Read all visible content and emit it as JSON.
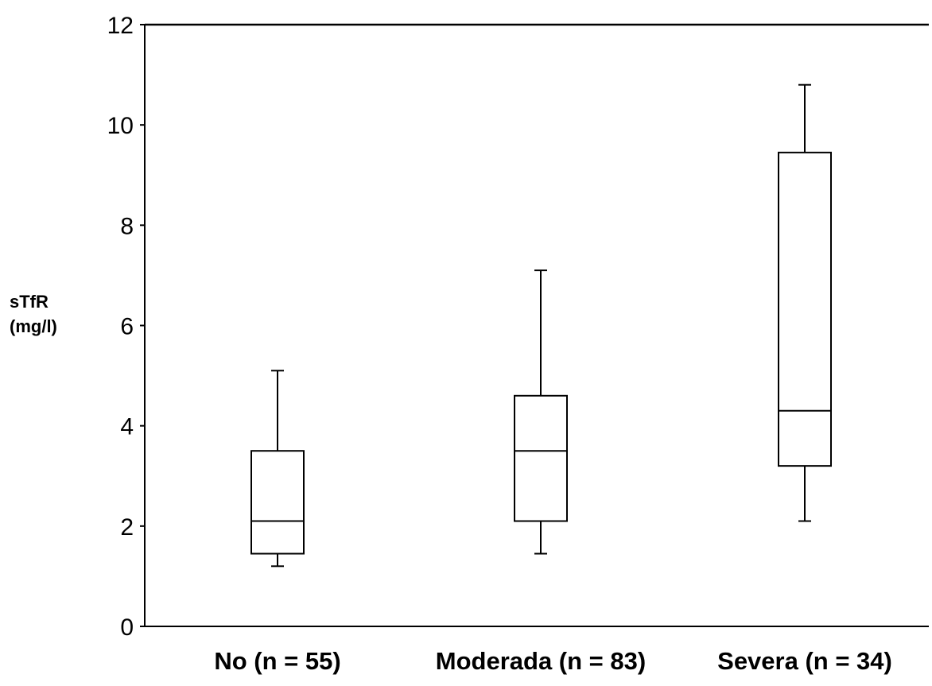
{
  "chart_data": {
    "type": "boxplot",
    "title": "",
    "xlabel": "",
    "ylabel": [
      "sTfR",
      "(mg/l)"
    ],
    "ylim": [
      0,
      12
    ],
    "yticks": [
      0,
      2,
      4,
      6,
      8,
      10,
      12
    ],
    "grid": false,
    "legend": "none",
    "categories": [
      "No (n = 55)",
      "Moderada (n = 83)",
      "Severa (n = 34)"
    ],
    "boxes": [
      {
        "category": "No (n = 55)",
        "whisker_low": 1.2,
        "q1": 1.45,
        "median": 2.1,
        "q3": 3.5,
        "whisker_high": 5.1
      },
      {
        "category": "Moderada (n = 83)",
        "whisker_low": 1.45,
        "q1": 2.1,
        "median": 3.5,
        "q3": 4.6,
        "whisker_high": 7.1
      },
      {
        "category": "Severa (n = 34)",
        "whisker_low": 2.1,
        "q1": 3.2,
        "median": 4.3,
        "q3": 9.45,
        "whisker_high": 10.8
      }
    ],
    "colors": {
      "line": "#000000",
      "background": "#ffffff"
    }
  }
}
